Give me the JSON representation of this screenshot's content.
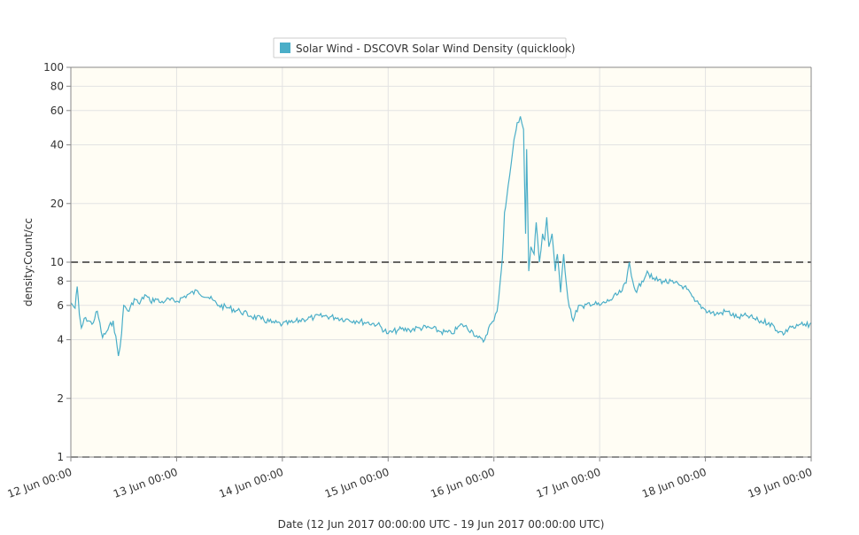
{
  "chart_data": {
    "type": "line",
    "legend": {
      "position": "top-center",
      "label": "Solar Wind - DSCOVR Solar Wind Density (quicklook)",
      "color": "#4aaec8"
    },
    "xlabel": "Date (12 Jun 2017 00:00:00 UTC - 19 Jun 2017 00:00:00 UTC)",
    "ylabel": "density:Count/cc",
    "yscale": "log",
    "ylim": [
      1,
      100
    ],
    "xlim": [
      "12 Jun 00:00",
      "19 Jun 00:00"
    ],
    "y_ticks": [
      1,
      2,
      4,
      6,
      8,
      10,
      20,
      40,
      60,
      80,
      100
    ],
    "x_ticks": [
      "12 Jun 00:00",
      "13 Jun 00:00",
      "14 Jun 00:00",
      "15 Jun 00:00",
      "16 Jun 00:00",
      "17 Jun 00:00",
      "18 Jun 00:00",
      "19 Jun 00:00"
    ],
    "reference_lines": [
      1,
      10
    ],
    "grid": true,
    "background": "#fffdf4",
    "series": [
      {
        "name": "Solar Wind - DSCOVR Solar Wind Density (quicklook)",
        "color": "#4aaec8",
        "x_days": [
          0.0,
          0.04,
          0.06,
          0.08,
          0.1,
          0.14,
          0.2,
          0.25,
          0.3,
          0.35,
          0.4,
          0.45,
          0.48,
          0.5,
          0.55,
          0.6,
          0.65,
          0.7,
          0.75,
          0.8,
          0.85,
          0.9,
          1.0,
          1.1,
          1.2,
          1.3,
          1.4,
          1.5,
          1.6,
          1.7,
          1.8,
          1.9,
          2.0,
          2.1,
          2.2,
          2.3,
          2.4,
          2.5,
          2.6,
          2.7,
          2.8,
          2.9,
          3.0,
          3.1,
          3.2,
          3.3,
          3.4,
          3.5,
          3.6,
          3.7,
          3.8,
          3.85,
          3.9,
          3.95,
          4.0,
          4.03,
          4.06,
          4.08,
          4.1,
          4.12,
          4.15,
          4.18,
          4.2,
          4.22,
          4.25,
          4.28,
          4.3,
          4.31,
          4.33,
          4.35,
          4.38,
          4.4,
          4.43,
          4.46,
          4.48,
          4.5,
          4.52,
          4.55,
          4.58,
          4.6,
          4.63,
          4.66,
          4.7,
          4.75,
          4.8,
          4.85,
          4.9,
          5.0,
          5.1,
          5.2,
          5.25,
          5.28,
          5.3,
          5.35,
          5.4,
          5.45,
          5.5,
          5.6,
          5.7,
          5.8,
          5.9,
          6.0,
          6.1,
          6.2,
          6.3,
          6.4,
          6.5,
          6.6,
          6.7,
          6.75,
          6.8,
          6.85,
          6.9,
          6.95,
          7.0
        ],
        "values": [
          6.2,
          5.8,
          7.5,
          5.4,
          4.6,
          5.2,
          4.8,
          5.6,
          4.1,
          4.5,
          5.0,
          3.3,
          4.3,
          6.0,
          5.6,
          6.5,
          6.1,
          6.8,
          6.3,
          6.5,
          6.2,
          6.4,
          6.3,
          6.8,
          7.1,
          6.6,
          6.0,
          5.8,
          5.6,
          5.3,
          5.1,
          4.9,
          4.8,
          4.9,
          5.1,
          5.2,
          5.3,
          5.2,
          5.1,
          5.0,
          4.9,
          4.8,
          4.3,
          4.5,
          4.5,
          4.6,
          4.6,
          4.4,
          4.3,
          4.8,
          4.4,
          4.1,
          3.9,
          4.6,
          5.0,
          5.6,
          8.0,
          10.5,
          18.0,
          21.0,
          28.0,
          38.0,
          45.0,
          52.0,
          56.0,
          48.0,
          14.0,
          38.0,
          9.0,
          12.0,
          11.0,
          16.0,
          10.0,
          14.0,
          13.0,
          17.0,
          12.0,
          14.0,
          9.0,
          11.0,
          7.0,
          11.0,
          6.5,
          5.0,
          6.0,
          5.8,
          6.2,
          6.0,
          6.4,
          7.0,
          7.8,
          10.0,
          8.5,
          7.0,
          8.0,
          9.0,
          8.2,
          8.0,
          7.8,
          7.5,
          6.3,
          5.7,
          5.4,
          5.6,
          5.2,
          5.3,
          5.0,
          4.9,
          4.4,
          4.3,
          4.7,
          4.6,
          4.8,
          4.7,
          4.9
        ]
      }
    ]
  }
}
